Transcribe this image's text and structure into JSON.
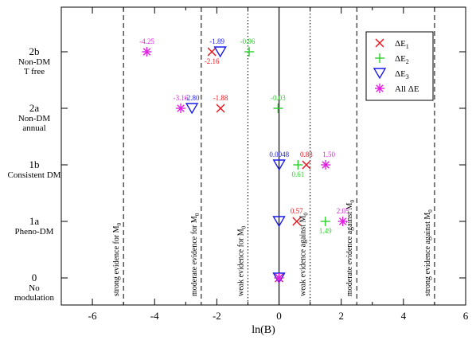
{
  "chart_data": {
    "type": "scatter",
    "xlabel": "ln(B)",
    "xlim": [
      -7,
      6
    ],
    "x_ticks": [
      -6,
      -4,
      -2,
      0,
      2,
      4,
      6
    ],
    "x_tick_labels": [
      "-6",
      "-4",
      "-2",
      "0",
      "2",
      "4",
      "6"
    ],
    "categories": [
      {
        "id": "0",
        "label": [
          "0",
          "No",
          "modulation"
        ]
      },
      {
        "id": "1a",
        "label": [
          "1a",
          "Pheno-DM"
        ]
      },
      {
        "id": "1b",
        "label": [
          "1b",
          "Consistent DM"
        ]
      },
      {
        "id": "2a",
        "label": [
          "2a",
          "Non-DM",
          "annual"
        ]
      },
      {
        "id": "2b",
        "label": [
          "2b",
          "Non-DM",
          "T free"
        ]
      }
    ],
    "reference_lines": [
      {
        "x": -5,
        "style": "dashed",
        "label": "strong evidence for M0"
      },
      {
        "x": -2.5,
        "style": "dashed",
        "label": "moderate evidence for M0"
      },
      {
        "x": -1,
        "style": "dotted",
        "label": "weak evidence for M0"
      },
      {
        "x": 0,
        "style": "solid",
        "label": ""
      },
      {
        "x": 1,
        "style": "dotted",
        "label": "weak evidence against M0"
      },
      {
        "x": 2.5,
        "style": "dashed",
        "label": "moderate evidence against M0"
      },
      {
        "x": 5,
        "style": "dashed",
        "label": "strong evidence against M0"
      }
    ],
    "series": [
      {
        "name": "ΔE1",
        "marker": "x",
        "color": "#e8121a",
        "points": [
          {
            "cat": "2b",
            "x": -2.16,
            "label": "-2.16"
          },
          {
            "cat": "2a",
            "x": -1.88,
            "label": "-1.88"
          },
          {
            "cat": "1b",
            "x": 0.88,
            "label": "0.88"
          },
          {
            "cat": "1a",
            "x": 0.57,
            "label": "0.57"
          },
          {
            "cat": "0",
            "x": 0,
            "label": ""
          }
        ]
      },
      {
        "name": "ΔE2",
        "marker": "plus",
        "color": "#2bd12b",
        "points": [
          {
            "cat": "2b",
            "x": -0.96,
            "label": "-0.96"
          },
          {
            "cat": "2a",
            "x": -0.03,
            "label": "-0.03"
          },
          {
            "cat": "1b",
            "x": 0.61,
            "label": "0.61"
          },
          {
            "cat": "1a",
            "x": 1.49,
            "label": "1.49"
          },
          {
            "cat": "0",
            "x": 0,
            "label": ""
          }
        ]
      },
      {
        "name": "ΔE3",
        "marker": "triangle-down",
        "color": "#1a1aeb",
        "points": [
          {
            "cat": "2b",
            "x": -1.89,
            "label": "-1.89"
          },
          {
            "cat": "2a",
            "x": -2.8,
            "label": "-2.80"
          },
          {
            "cat": "1b",
            "x": 0.0048,
            "label": "0.0048"
          },
          {
            "cat": "1a",
            "x": 0,
            "label": ""
          },
          {
            "cat": "0",
            "x": 0,
            "label": ""
          }
        ]
      },
      {
        "name": "All ΔE",
        "marker": "asterisk",
        "color": "#e21fe2",
        "points": [
          {
            "cat": "2b",
            "x": -4.25,
            "label": "-4.25"
          },
          {
            "cat": "2a",
            "x": -3.16,
            "label": "-3.16"
          },
          {
            "cat": "1b",
            "x": 1.5,
            "label": "1.50"
          },
          {
            "cat": "1a",
            "x": 2.05,
            "label": "2.05"
          },
          {
            "cat": "0",
            "x": 0,
            "label": ""
          }
        ]
      }
    ],
    "legend": {
      "position": "top-right",
      "entries": [
        {
          "marker": "x",
          "color": "#e8121a",
          "base": "ΔE",
          "sub": "1"
        },
        {
          "marker": "plus",
          "color": "#2bd12b",
          "base": "ΔE",
          "sub": "2"
        },
        {
          "marker": "triangle-down",
          "color": "#1a1aeb",
          "base": "ΔE",
          "sub": "3"
        },
        {
          "marker": "asterisk",
          "color": "#e21fe2",
          "base": "All ΔE",
          "sub": ""
        }
      ]
    }
  }
}
